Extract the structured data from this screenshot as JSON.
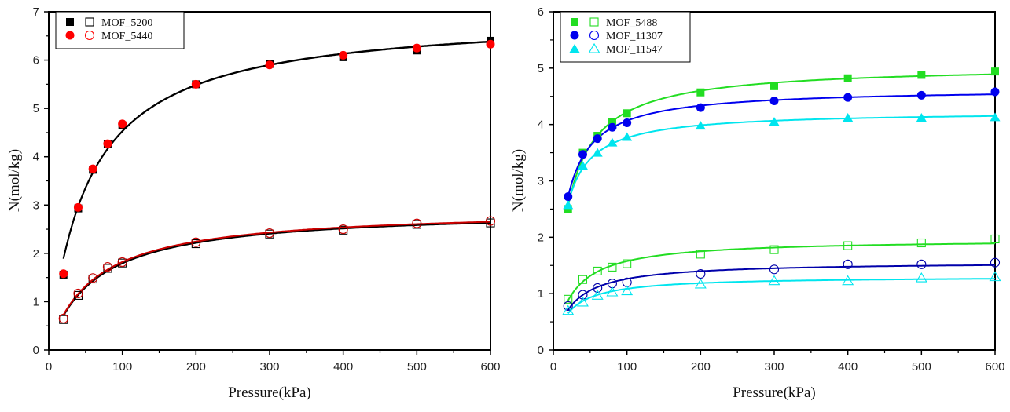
{
  "chart_data": [
    {
      "type": "scatter",
      "title": "",
      "xlabel": "Pressure(kPa)",
      "ylabel": "N(mol/kg)",
      "xlim": [
        0,
        600
      ],
      "ylim": [
        0,
        7
      ],
      "xticks": [
        "0",
        "100",
        "200",
        "300",
        "400",
        "500",
        "600"
      ],
      "yticks": [
        "0",
        "1",
        "2",
        "3",
        "4",
        "5",
        "6",
        "7"
      ],
      "grid": false,
      "legend_position": "top-left",
      "legend": [
        {
          "label": "MOF_5200",
          "color": "#000000",
          "marker": "square"
        },
        {
          "label": "MOF_5440",
          "color": "#ff0000",
          "marker": "circle"
        }
      ],
      "x": [
        20,
        40,
        60,
        80,
        100,
        200,
        300,
        400,
        500,
        600
      ],
      "series": [
        {
          "name": "MOF_5200",
          "fill": "filled",
          "marker": "square",
          "color": "#000000",
          "line_color": "#000000",
          "values": [
            1.56,
            2.93,
            3.73,
            4.27,
            4.65,
            5.5,
            5.92,
            6.06,
            6.2,
            6.4
          ]
        },
        {
          "name": "MOF_5440",
          "fill": "filled",
          "marker": "circle",
          "color": "#ff0000",
          "line_color": "#000000",
          "values": [
            1.58,
            2.95,
            3.75,
            4.27,
            4.68,
            5.5,
            5.9,
            6.1,
            6.25,
            6.33
          ]
        },
        {
          "name": "MOF_5200",
          "fill": "open",
          "marker": "square",
          "color": "#000000",
          "line_color": "#000000",
          "values": [
            0.63,
            1.13,
            1.47,
            1.69,
            1.8,
            2.2,
            2.4,
            2.48,
            2.6,
            2.63
          ]
        },
        {
          "name": "MOF_5440",
          "fill": "open",
          "marker": "circle",
          "color": "#cc0000",
          "line_color": "#cc0000",
          "values": [
            0.65,
            1.17,
            1.49,
            1.72,
            1.82,
            2.23,
            2.42,
            2.5,
            2.62,
            2.67
          ]
        }
      ]
    },
    {
      "type": "scatter",
      "title": "",
      "xlabel": "Pressure(kPa)",
      "ylabel": "N(mol/kg)",
      "xlim": [
        0,
        600
      ],
      "ylim": [
        0,
        6
      ],
      "xticks": [
        "0",
        "100",
        "200",
        "300",
        "400",
        "500",
        "600"
      ],
      "yticks": [
        "0",
        "1",
        "2",
        "3",
        "4",
        "5",
        "6"
      ],
      "grid": false,
      "legend_position": "top-left",
      "legend": [
        {
          "label": "MOF_5488",
          "color": "#22dd22",
          "marker": "square"
        },
        {
          "label": "MOF_11307",
          "color": "#0000ee",
          "marker": "circle"
        },
        {
          "label": "MOF_11547",
          "color": "#00e5ee",
          "marker": "triangle"
        }
      ],
      "x": [
        20,
        40,
        60,
        80,
        100,
        200,
        300,
        400,
        500,
        600
      ],
      "series": [
        {
          "name": "MOF_5488",
          "fill": "filled",
          "marker": "square",
          "color": "#22dd22",
          "values": [
            2.5,
            3.5,
            3.8,
            4.04,
            4.2,
            4.57,
            4.68,
            4.82,
            4.88,
            4.94
          ]
        },
        {
          "name": "MOF_11307",
          "fill": "filled",
          "marker": "circle",
          "color": "#0000ee",
          "values": [
            2.72,
            3.47,
            3.75,
            3.95,
            4.03,
            4.3,
            4.42,
            4.48,
            4.52,
            4.58
          ]
        },
        {
          "name": "MOF_11547",
          "fill": "filled",
          "marker": "triangle",
          "color": "#00e5ee",
          "values": [
            2.57,
            3.27,
            3.5,
            3.68,
            3.78,
            3.98,
            4.05,
            4.12,
            4.12,
            4.13
          ]
        },
        {
          "name": "MOF_5488",
          "fill": "open",
          "marker": "square",
          "color": "#22dd22",
          "values": [
            0.9,
            1.25,
            1.4,
            1.47,
            1.53,
            1.7,
            1.78,
            1.85,
            1.9,
            1.97
          ]
        },
        {
          "name": "MOF_11307",
          "fill": "open",
          "marker": "circle",
          "color": "#0000aa",
          "values": [
            0.78,
            0.98,
            1.1,
            1.18,
            1.2,
            1.35,
            1.43,
            1.52,
            1.52,
            1.55
          ]
        },
        {
          "name": "MOF_11547",
          "fill": "open",
          "marker": "triangle",
          "color": "#00e5ee",
          "values": [
            0.7,
            0.85,
            0.97,
            1.03,
            1.05,
            1.17,
            1.23,
            1.23,
            1.28,
            1.3
          ]
        }
      ]
    }
  ]
}
